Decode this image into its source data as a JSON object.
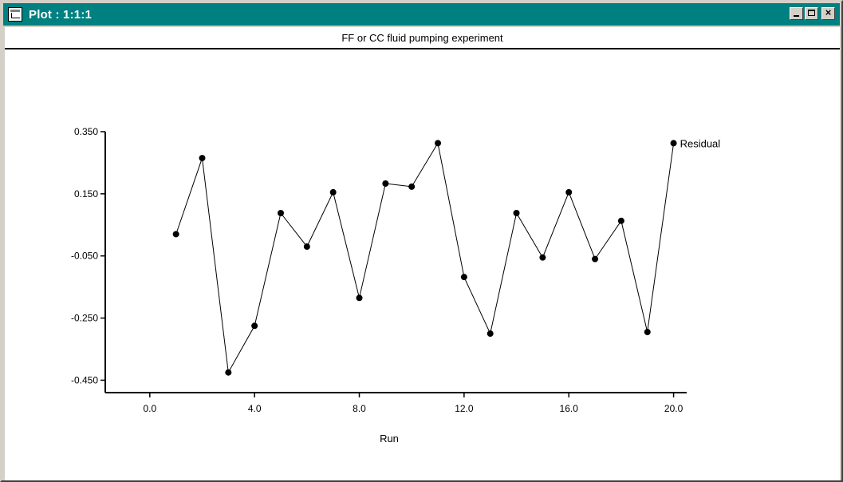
{
  "window": {
    "title": "Plot : 1:1:1",
    "icon": "plot-window-icon",
    "controls": {
      "minimize": "minimize-icon",
      "maximize": "maximize-icon",
      "close": "close-icon",
      "close_glyph": "×"
    },
    "colors": {
      "titlebar": "#008080",
      "frame": "#d4d0c8",
      "plot_background": "#ffffff"
    }
  },
  "chart_data": {
    "type": "line",
    "title": "FF or CC fluid pumping experiment",
    "xlabel": "Run",
    "ylabel": "",
    "xlim": [
      -1.7,
      20.5
    ],
    "ylim": [
      -0.49,
      0.35
    ],
    "xticks": [
      0,
      4,
      8,
      12,
      16,
      20
    ],
    "xtick_labels": [
      "0.0",
      "4.0",
      "8.0",
      "12.0",
      "16.0",
      "20.0"
    ],
    "yticks": [
      0.35,
      0.15,
      -0.05,
      -0.25,
      -0.45
    ],
    "ytick_labels": [
      "0.350",
      "0.150",
      "-0.050",
      "-0.250",
      "-0.450"
    ],
    "grid": false,
    "legend": "series label at right end of line",
    "series": [
      {
        "name": "Residual",
        "marker": "filled-circle",
        "color": "#000000",
        "x": [
          1,
          2,
          3,
          4,
          5,
          6,
          7,
          8,
          9,
          10,
          11,
          12,
          13,
          14,
          15,
          16,
          17,
          18,
          19,
          20
        ],
        "y": [
          0.02,
          0.265,
          -0.425,
          -0.275,
          0.088,
          -0.02,
          0.155,
          -0.185,
          0.183,
          0.173,
          0.313,
          -0.118,
          -0.3,
          0.088,
          -0.055,
          0.155,
          -0.06,
          0.063,
          -0.295,
          0.313
        ]
      }
    ]
  }
}
